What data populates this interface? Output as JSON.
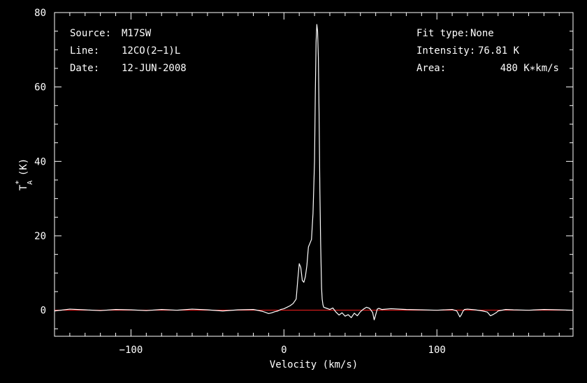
{
  "chart_data": {
    "type": "line",
    "xlabel": "Velocity (km/s)",
    "ylabel_main": "T",
    "ylabel_sup": "*",
    "ylabel_sub": "A",
    "ylabel_unit": "(K)",
    "xlim": [
      -150,
      189
    ],
    "ylim": [
      -7,
      80
    ],
    "x_ticks": [
      -100,
      0,
      100
    ],
    "x_tick_labels": [
      "−100",
      "0",
      "100"
    ],
    "y_ticks": [
      0,
      20,
      40,
      60,
      80
    ],
    "y_tick_labels": [
      "0",
      "20",
      "40",
      "60",
      "80"
    ],
    "x_minor_step": 10,
    "y_minor_step": 5,
    "baseline_value": 0,
    "colors": {
      "spectrum": "#ffffff",
      "baseline": "#ff2020",
      "axes": "#ffffff",
      "background": "#000000"
    },
    "series": [
      {
        "x": [
          -150,
          -140,
          -130,
          -120,
          -110,
          -100,
          -90,
          -80,
          -70,
          -60,
          -50,
          -40,
          -30,
          -20,
          -14,
          -12,
          -10,
          -8,
          -6,
          -4,
          -2,
          0,
          2,
          4,
          6,
          8,
          9,
          10,
          11,
          12,
          13,
          14,
          15,
          16,
          17,
          18,
          19,
          20,
          20.5,
          21,
          21.5,
          22,
          22.5,
          23,
          23.5,
          24,
          24.3,
          24.6,
          25,
          25.5,
          26,
          28,
          30,
          32,
          34,
          36,
          38,
          40,
          42,
          44,
          46,
          48,
          50,
          52,
          54,
          56,
          58,
          59,
          60,
          61,
          62,
          64,
          70,
          80,
          90,
          100,
          110,
          113,
          115,
          116,
          117,
          118,
          120,
          125,
          130,
          133,
          135,
          137,
          139,
          140,
          145,
          150,
          160,
          170,
          180,
          189
        ],
        "y": [
          -0.2,
          0.3,
          0.1,
          -0.1,
          0.2,
          0.1,
          -0.1,
          0.2,
          0.0,
          0.3,
          0.1,
          -0.2,
          0.1,
          0.2,
          -0.3,
          -0.6,
          -0.9,
          -0.7,
          -0.4,
          -0.2,
          0.2,
          0.4,
          0.8,
          1.2,
          1.8,
          3,
          8,
          12.5,
          11.5,
          8,
          7.5,
          9,
          12,
          17,
          18,
          19,
          26,
          40,
          58,
          72,
          76.8,
          75,
          68,
          52,
          32,
          18,
          12,
          6,
          3,
          1.5,
          0.8,
          0.5,
          0.2,
          0.6,
          -0.5,
          -1.3,
          -0.7,
          -1.6,
          -1.2,
          -2.0,
          -0.8,
          -1.5,
          -0.4,
          0.3,
          0.8,
          0.5,
          -0.6,
          -2.6,
          -1.2,
          0.3,
          0.5,
          0.2,
          0.4,
          0.2,
          0.1,
          0.0,
          0.2,
          -0.2,
          -1.8,
          -1.2,
          -0.3,
          0.2,
          0.3,
          0.1,
          -0.2,
          -0.5,
          -1.5,
          -1.1,
          -0.6,
          -0.2,
          0.2,
          0.1,
          0.0,
          0.2,
          0.1,
          0.0
        ]
      }
    ]
  },
  "info_left": [
    {
      "key": "Source:",
      "value": "M17SW"
    },
    {
      "key": "Line:",
      "value": "12CO(2−1)L"
    },
    {
      "key": "Date:",
      "value": "12-JUN-2008"
    }
  ],
  "info_right": [
    {
      "key": "Fit type:",
      "value": "None"
    },
    {
      "key": "Intensity:",
      "value": "76.81 K"
    },
    {
      "key": "Area:",
      "value": "480 K∗km/s"
    }
  ]
}
